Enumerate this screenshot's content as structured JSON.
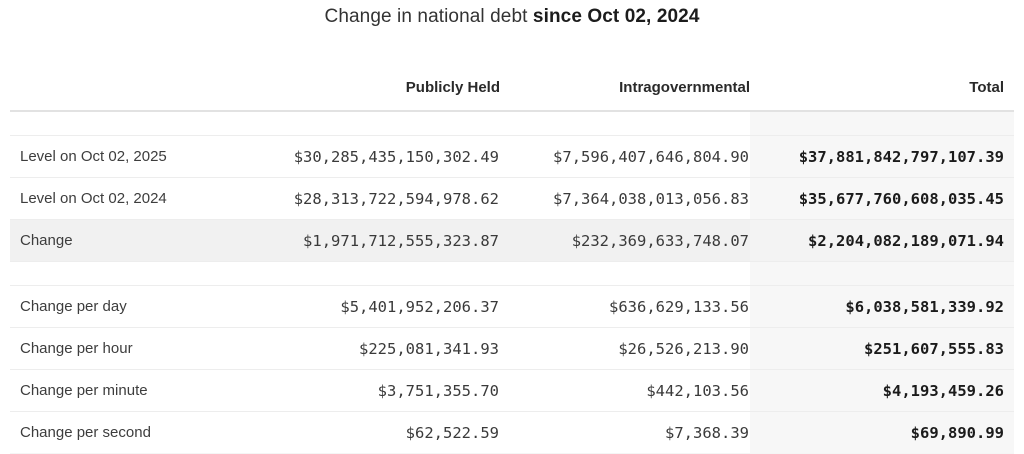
{
  "header": {
    "title_prefix": "Change in national debt",
    "title_emphasis": "since Oct 02, 2024"
  },
  "chart_data": {
    "type": "table",
    "title": "Change in national debt since Oct 02, 2024",
    "columns": [
      "Publicly Held",
      "Intragovernmental",
      "Total"
    ],
    "rows": [
      {
        "label": "Level on Oct 02, 2025",
        "publicly_held": "$30,285,435,150,302.49",
        "intragovernmental": "$7,596,407,646,804.90",
        "total": "$37,881,842,797,107.39"
      },
      {
        "label": "Level on Oct 02, 2024",
        "publicly_held": "$28,313,722,594,978.62",
        "intragovernmental": "$7,364,038,013,056.83",
        "total": "$35,677,760,608,035.45"
      },
      {
        "label": "Change",
        "publicly_held": "$1,971,712,555,323.87",
        "intragovernmental": "$232,369,633,748.07",
        "total": "$2,204,082,189,071.94"
      },
      {
        "label": "Change per day",
        "publicly_held": "$5,401,952,206.37",
        "intragovernmental": "$636,629,133.56",
        "total": "$6,038,581,339.92"
      },
      {
        "label": "Change per hour",
        "publicly_held": "$225,081,341.93",
        "intragovernmental": "$26,526,213.90",
        "total": "$251,607,555.83"
      },
      {
        "label": "Change per minute",
        "publicly_held": "$3,751,355.70",
        "intragovernmental": "$442,103.56",
        "total": "$4,193,459.26"
      },
      {
        "label": "Change per second",
        "publicly_held": "$62,522.59",
        "intragovernmental": "$7,368.39",
        "total": "$69,890.99"
      }
    ]
  },
  "colors": {
    "total_column_bg": "#f7f7f7",
    "change_row_bg": "#f1f1f1",
    "header_border": "#e2e2e2",
    "row_border": "#ededed"
  }
}
